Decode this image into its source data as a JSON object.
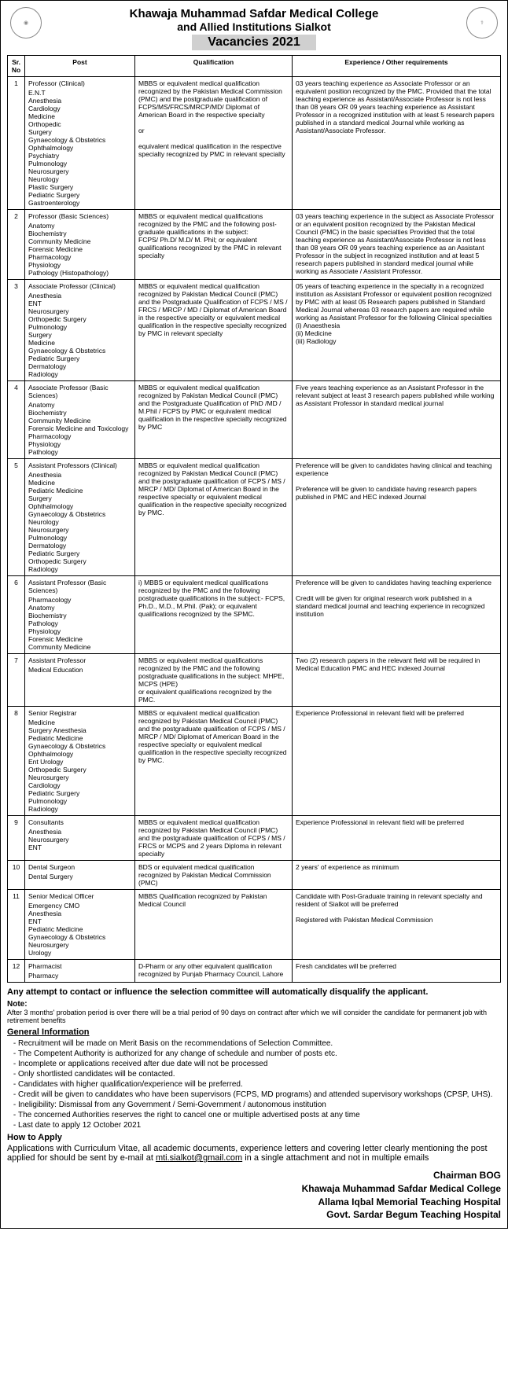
{
  "header": {
    "line1": "Khawaja Muhammad Safdar Medical College",
    "line2": "and Allied Institutions Sialkot",
    "vacancies": "Vacancies 2021"
  },
  "columns": {
    "sr": "Sr. No",
    "post": "Post",
    "qual": "Qualification",
    "exp": "Experience / Other requirements"
  },
  "rows": [
    {
      "sr": "1",
      "post": "Professor (Clinical)",
      "specs": "E.N.T\nAnesthesia\nCardiology\nMedicine\nOrthopedic\nSurgery\nGynaecology & Obstetrics\nOphthalmology\nPsychiatry\nPulmonology\nNeurosurgery\nNeurology\nPlastic Surgery\nPediatric Surgery\nGastroenterology",
      "qual": "MBBS or equivalent medical qualification recognized by the Pakistan Medical Commission (PMC) and the postgraduate qualification of FCPS/MS/FRCS/MRCP/MD/ Diplomat of American Board in the respective specialty\n\nor\n\nequivalent medical qualification in the respective specialty recognized by PMC in relevant specialty",
      "exp": "03 years teaching experience as Associate Professor or an equivalent position recognized by the PMC. Provided that the total teaching experience as Assistant/Associate Professor is not less than 08 years OR 09 years teaching experience as Assistant Professor in a recognized institution with at least 5 research papers published in a standard medical Journal while working as Assistant/Associate Professor."
    },
    {
      "sr": "2",
      "post": "Professor (Basic Sciences)",
      "specs": "Anatomy\nBiochemistry\nCommunity Medicine\nForensic Medicine\nPharmacology\nPhysiology\nPathology (Histopathology)",
      "qual": "MBBS or equivalent medical qualifications recognized by the PMC and the following post-graduate qualifications in the subject:\nFCPS/ Ph.D/ M.D/ M. Phil; or equivalent qualifications recognized by the PMC in relevant specialty",
      "exp": "03 years teaching experience in the subject as Associate Professor or an equivalent position recognized by the Pakistan Medical Council (PMC) in the basic specialties Provided that the total teaching experience as Assistant/Associate Professor is not less than 08 years OR 09 years teaching experience as an Assistant Professor in the subject in recognized institution and at least 5 research papers published in standard medical journal while working as Associate / Assistant Professor."
    },
    {
      "sr": "3",
      "post": "Associate Professor (Clinical)",
      "specs": "Anesthesia\nENT\nNeurosurgery\nOrthopedic Surgery\nPulmonology\nSurgery\nMedicine\nGynaecology & Obstetrics\nPediatric Surgery\nDermatology\nRadiology",
      "qual": "MBBS or equivalent medical qualification recognized by Pakistan Medical Council (PMC) and the Postgraduate Qualification of FCPS / MS / FRCS / MRCP / MD / Diplomat of American Board in the respective specialty or equivalent medical qualification in the respective specialty recognized by PMC in relevant specialty",
      "exp": "05 years of teaching experience in the specialty in a recognized institution as Assistant Professor or equivalent position recognized by PMC with at least 05 Research papers published in Standard Medical Journal whereas 03 research papers are required while working as Assistant Professor for the following Clinical specialties\n(i)   Anaesthesia\n(ii)  Medicine\n(iii) Radiology"
    },
    {
      "sr": "4",
      "post": "Associate Professor (Basic Sciences)",
      "specs": "Anatomy\nBiochemistry\nCommunity Medicine\nForensic Medicine and Toxicology\nPharmacology\nPhysiology\nPathology",
      "qual": "MBBS or equivalent medical qualification recognized by Pakistan Medical Council (PMC) and the Postgraduate Qualification of PhD /MD / M.Phil / FCPS by PMC or equivalent medical qualification in the respective specialty recognized by PMC",
      "exp": "Five years teaching experience as an Assistant Professor in the relevant subject at least 3 research papers published while working as Assistant Professor in standard medical journal"
    },
    {
      "sr": "5",
      "post": "Assistant Professors (Clinical)",
      "specs": "Anesthesia\nMedicine\nPediatric Medicine\nSurgery\nOphthalmology\nGynaecology & Obstetrics\nNeurology\nNeurosurgery\nPulmonology\nDermatology\nPediatric Surgery\nOrthopedic Surgery\nRadiology",
      "qual": "MBBS or equivalent medical qualification recognized by Pakistan Medical Council (PMC) and the postgraduate qualification of FCPS / MS / MRCP / MD/ Diplomat of American Board in the respective specialty or equivalent medical qualification in the respective specialty recognized by PMC.",
      "exp": "Preference will be given to candidates having clinical and teaching experience\n\nPreference will be given to candidate having research papers published in PMC and HEC indexed Journal"
    },
    {
      "sr": "6",
      "post": "Assistant Professor (Basic Sciences)",
      "specs": "Pharmacology\nAnatomy\nBiochemistry\nPathology\nPhysiology\nForensic Medicine\nCommunity Medicine",
      "qual": "i) MBBS or equivalent medical qualifications recognized by the PMC and the following postgraduate qualifications in the subject:- FCPS, Ph.D., M.D., M.Phil. (Pak); or equivalent qualifications recognized by the SPMC.",
      "exp": "Preference will be given to candidates having teaching experience\n\nCredit will be given for original research work published in a standard medical journal and teaching experience in recognized institution"
    },
    {
      "sr": "7",
      "post": "Assistant Professor",
      "specs": "Medical Education",
      "qual": "MBBS or equivalent medical qualifications recognized by the PMC and the following postgraduate qualifications in the subject: MHPE, MCPS (HPE)\nor equivalent qualifications recognized by the PMC.",
      "exp": "Two (2) research papers in the relevant field will be required in Medical Education PMC and HEC indexed Journal"
    },
    {
      "sr": "8",
      "post": "Senior Registrar",
      "specs": "Medicine\nSurgery Anesthesia\nPediatric Medicine\nGynaecology & Obstetrics\nOphthalmology\nEnt Urology\nOrthopedic Surgery\nNeurosurgery\nCardiology\nPediatric Surgery\nPulmonology\nRadiology",
      "qual": "MBBS or equivalent medical qualification recognized by Pakistan Medical Council (PMC) and the postgraduate qualification of FCPS / MS / MRCP / MD/ Diplomat of American Board in the respective specialty or equivalent medical qualification in the respective specialty recognized by PMC.",
      "exp": "Experience Professional in relevant field will be preferred"
    },
    {
      "sr": "9",
      "post": "Consultants",
      "specs": "Anesthesia\nNeurosurgery\nENT",
      "qual": "MBBS or equivalent medical qualification recognized by Pakistan Medical Council (PMC) and the postgraduate qualification of FCPS / MS / FRCS or MCPS and 2 years Diploma in relevant specialty",
      "exp": "Experience Professional in relevant field will be preferred"
    },
    {
      "sr": "10",
      "post": "Dental Surgeon",
      "specs": "Dental Surgery",
      "qual": "BDS or equivalent medical qualification recognized by Pakistan Medical Commission (PMC)",
      "exp": "2 years' of experience as minimum"
    },
    {
      "sr": "11",
      "post": "Senior Medical Officer",
      "specs": "Emergency CMO\nAnesthesia\nENT\nPediatric Medicine\nGynaecology & Obstetrics\nNeurosurgery\nUrology",
      "qual": "MBBS Qualification recognized by Pakistan Medical Council",
      "exp": "Candidate with Post-Graduate training in relevant specialty and resident of Sialkot will be preferred\n\nRegistered with Pakistan Medical Commission"
    },
    {
      "sr": "12",
      "post": "Pharmacist",
      "specs": "Pharmacy",
      "qual": "D-Pharm or any other equivalent qualification recognized by Punjab Pharmacy Council, Lahore",
      "exp": "Fresh candidates will be preferred"
    }
  ],
  "warning": "Any attempt to contact or influence the selection committee will automatically disqualify the applicant.",
  "note": {
    "head": "Note:",
    "body": "After 3 months' probation period is over there will be a trial period of 90 days on contract after which we will consider the candidate for permanent job with retirement benefits"
  },
  "general": {
    "head": "General Information",
    "items": [
      "Recruitment will be made on Merit Basis on the recommendations of Selection Committee.",
      "The Competent Authority is authorized for any change of schedule and number of posts etc.",
      "Incomplete or applications received after due date will not be processed",
      "Only shortlisted candidates will be contacted.",
      "Candidates with higher qualification/experience will be preferred.",
      "Credit will be given to candidates who have been supervisors (FCPS, MD programs) and attended supervisory workshops (CPSP, UHS).",
      "Ineligibility: Dismissal from any Government / Semi-Government / autonomous institution",
      "The concerned Authorities reserves the right to cancel one or multiple advertised posts at any time",
      "Last date to apply 12 October 2021"
    ]
  },
  "howto": {
    "head": "How to Apply",
    "body": "Applications with Curriculum Vitae, all academic documents, experience letters and covering letter clearly mentioning the post applied for should be sent by e-mail at mti.sialkot@gmail.com in a single attachment and not in multiple emails"
  },
  "signature": {
    "l1": "Chairman BOG",
    "l2": "Khawaja Muhammad Safdar Medical College",
    "l3": "Allama Iqbal Memorial Teaching Hospital",
    "l4": "Govt. Sardar Begum Teaching Hospital"
  }
}
